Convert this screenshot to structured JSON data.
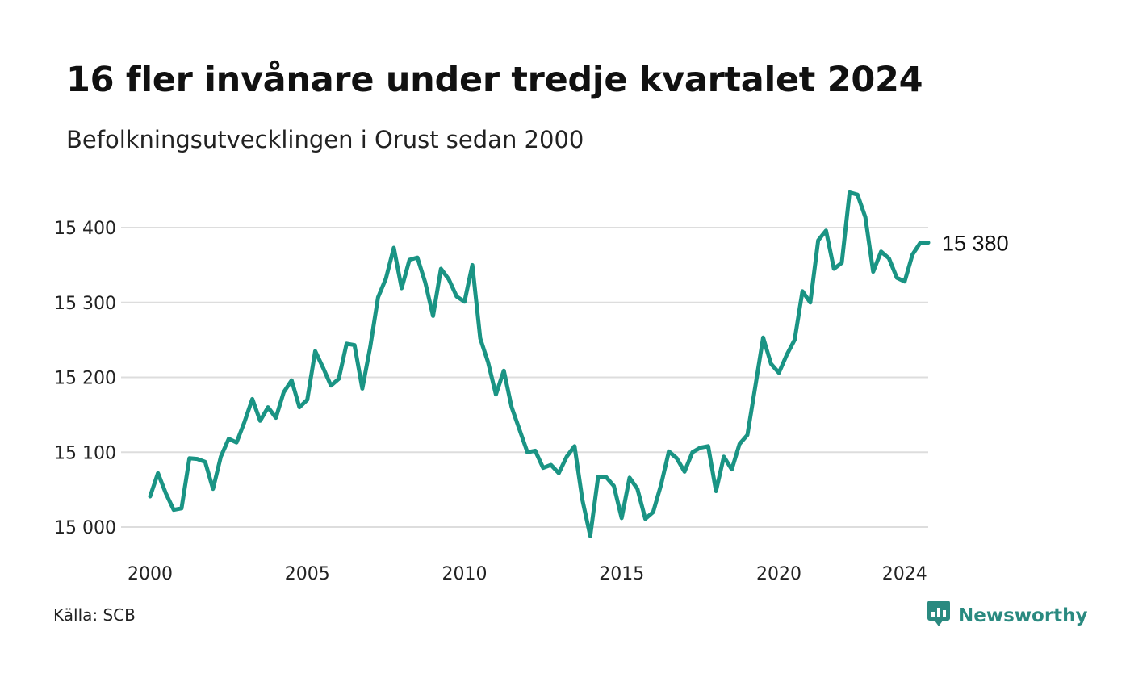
{
  "header": {
    "title": "16 fler invånare under tredje kvartalet 2024",
    "subtitle": "Befolkningsutvecklingen i Orust sedan 2000"
  },
  "footer": {
    "source": "Källa: SCB",
    "brand": "Newsworthy",
    "brand_icon": "newsworthy-logo-icon",
    "brand_color": "#2a8a80"
  },
  "colors": {
    "line": "#1a9484",
    "grid": "#dddddd"
  },
  "chart_data": {
    "type": "line",
    "x_ticks": [
      {
        "value": 2000,
        "label": "2000"
      },
      {
        "value": 2005,
        "label": "2005"
      },
      {
        "value": 2010,
        "label": "2010"
      },
      {
        "value": 2015,
        "label": "2015"
      },
      {
        "value": 2020,
        "label": "2020"
      },
      {
        "value": 2024,
        "label": "2024"
      }
    ],
    "y_ticks": [
      {
        "value": 15000,
        "label": "15 000"
      },
      {
        "value": 15100,
        "label": "15 100"
      },
      {
        "value": 15200,
        "label": "15 200"
      },
      {
        "value": 15300,
        "label": "15 300"
      },
      {
        "value": 15400,
        "label": "15 400"
      }
    ],
    "xlim": [
      2000,
      2024.75
    ],
    "ylim": [
      15000,
      15400
    ],
    "grid": "horizontal",
    "end_label": "15 380",
    "series": [
      {
        "x": [
          2000.0,
          2000.25,
          2000.5,
          2000.75,
          2001.0,
          2001.25,
          2001.5,
          2001.75,
          2002.0,
          2002.25,
          2002.5,
          2002.75,
          2003.0,
          2003.25,
          2003.5,
          2003.75,
          2004.0,
          2004.25,
          2004.5,
          2004.75,
          2005.0,
          2005.25,
          2005.5,
          2005.75,
          2006.0,
          2006.25,
          2006.5,
          2006.75,
          2007.0,
          2007.25,
          2007.5,
          2007.75,
          2008.0,
          2008.25,
          2008.5,
          2008.75,
          2009.0,
          2009.25,
          2009.5,
          2009.75,
          2010.0,
          2010.25,
          2010.5,
          2010.75,
          2011.0,
          2011.25,
          2011.5,
          2011.75,
          2012.0,
          2012.25,
          2012.5,
          2012.75,
          2013.0,
          2013.25,
          2013.5,
          2013.75,
          2014.0,
          2014.25,
          2014.5,
          2014.75,
          2015.0,
          2015.25,
          2015.5,
          2015.75,
          2016.0,
          2016.25,
          2016.5,
          2016.75,
          2017.0,
          2017.25,
          2017.5,
          2017.75,
          2018.0,
          2018.25,
          2018.5,
          2018.75,
          2019.0,
          2019.25,
          2019.5,
          2019.75,
          2020.0,
          2020.25,
          2020.5,
          2020.75,
          2021.0,
          2021.25,
          2021.5,
          2021.75,
          2022.0,
          2022.25,
          2022.5,
          2022.75,
          2023.0,
          2023.25,
          2023.5,
          2023.75,
          2024.0,
          2024.25,
          2024.5,
          2024.75
        ],
        "y": [
          15041,
          15072,
          15045,
          15023,
          15025,
          15092,
          15091,
          15087,
          15051,
          15094,
          15118,
          15113,
          15140,
          15171,
          15142,
          15160,
          15146,
          15180,
          15196,
          15160,
          15170,
          15235,
          15213,
          15189,
          15198,
          15245,
          15243,
          15185,
          15240,
          15307,
          15332,
          15373,
          15319,
          15357,
          15360,
          15327,
          15282,
          15345,
          15331,
          15308,
          15301,
          15350,
          15252,
          15220,
          15177,
          15209,
          15160,
          15130,
          15100,
          15102,
          15079,
          15083,
          15072,
          15094,
          15108,
          15036,
          14988,
          15067,
          15067,
          15055,
          15012,
          15066,
          15051,
          15011,
          15020,
          15056,
          15101,
          15092,
          15074,
          15100,
          15106,
          15108,
          15048,
          15094,
          15077,
          15111,
          15123,
          15188,
          15253,
          15218,
          15206,
          15230,
          15250,
          15315,
          15300,
          15383,
          15396,
          15345,
          15353,
          15447,
          15444,
          15414,
          15341,
          15368,
          15359,
          15333,
          15328,
          15364,
          15380,
          15380
        ]
      }
    ]
  }
}
